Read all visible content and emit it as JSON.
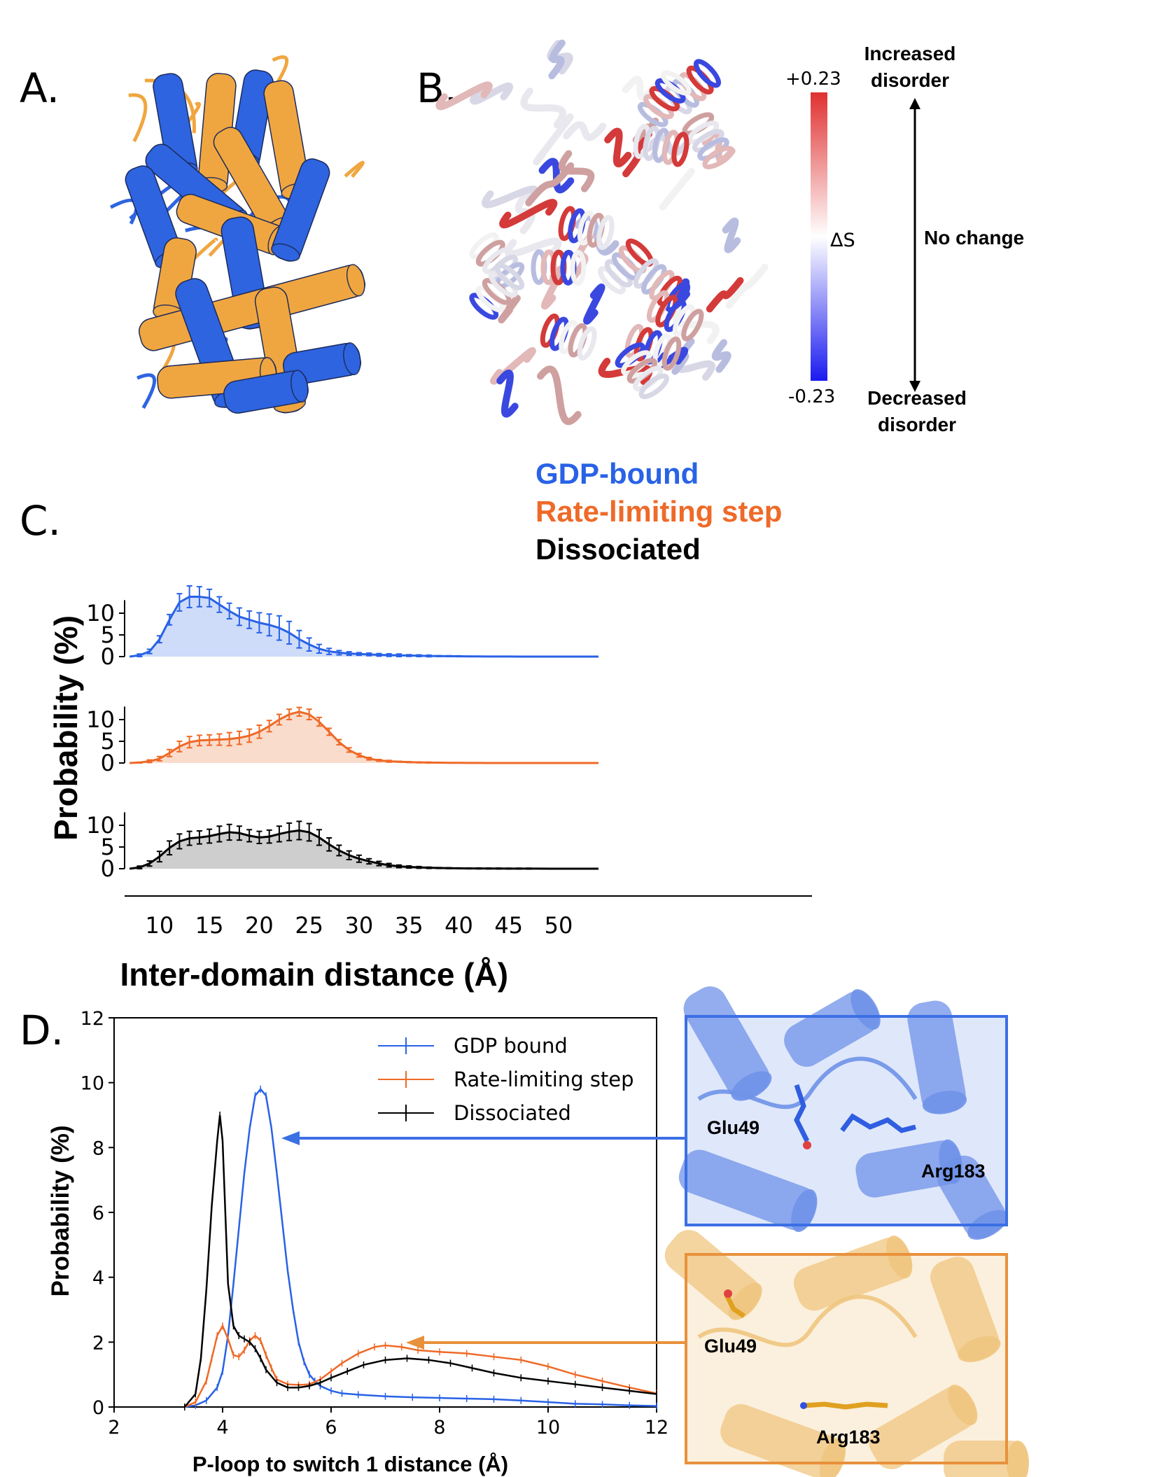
{
  "panels": {
    "a": "A.",
    "b": "B.",
    "c": "C.",
    "d": "D."
  },
  "panel_b": {
    "colorbar_max": "+0.23",
    "colorbar_min": "-0.23",
    "colorbar_label": "ΔS",
    "top_label": [
      "Increased",
      "disorder"
    ],
    "middle_label": "No change",
    "bottom_label": [
      "Decreased",
      "disorder"
    ],
    "colors": {
      "high": "#e03030",
      "mid": "#ffffff",
      "low": "#1a1af0"
    }
  },
  "colors": {
    "gdp": "#2962e6",
    "rate": "#ee6a28",
    "dissociated": "#000000",
    "fill_gdp": "#c9d8f8",
    "fill_rate": "#f9d8c6",
    "fill_diss": "#c9c9c9",
    "protein_blue": "#2e64e0",
    "protein_orange": "#f0a640",
    "inset_blue_frame": "#3b6fe4",
    "inset_orange_frame": "#e8913c"
  },
  "chart_data": [
    {
      "type": "area",
      "panel": "C",
      "legend": [
        "GDP-bound",
        "Rate-limiting step",
        "Dissociated"
      ],
      "xlabel": "Inter-domain distance (Å)",
      "ylabel": "Probability (%)",
      "xlim": [
        6.5,
        54
      ],
      "xticks": [
        10,
        15,
        20,
        25,
        30,
        35,
        40,
        45,
        50
      ],
      "yticks": [
        0,
        5,
        10
      ],
      "x": [
        7,
        8,
        9,
        10,
        11,
        12,
        13,
        14,
        15,
        16,
        17,
        18,
        19,
        20,
        21,
        22,
        23,
        24,
        25,
        26,
        27,
        28,
        29,
        30,
        31,
        32,
        33,
        34,
        35,
        36,
        37,
        38,
        39,
        40,
        41,
        42,
        43,
        44,
        45,
        46,
        47,
        48,
        49,
        50,
        51,
        52,
        53,
        54
      ],
      "series": [
        {
          "name": "GDP-bound",
          "values": [
            0,
            0.3,
            1.2,
            4,
            8.5,
            12.5,
            13.8,
            13.8,
            13.5,
            12,
            10.5,
            9.2,
            8.5,
            7.8,
            7.3,
            6.6,
            5.5,
            4,
            2.8,
            1.8,
            1.2,
            0.9,
            0.7,
            0.6,
            0.5,
            0.4,
            0.35,
            0.3,
            0.25,
            0.2,
            0.15,
            0.12,
            0.1,
            0.08,
            0.05,
            0.04,
            0.03,
            0.02,
            0.02,
            0.01,
            0.01,
            0,
            0,
            0,
            0,
            0,
            0,
            0
          ],
          "errors": [
            0,
            0.3,
            0.5,
            0.8,
            1.2,
            2,
            2.5,
            2.3,
            2,
            1.8,
            1.8,
            2,
            2,
            2.3,
            2.5,
            2.8,
            2.6,
            2,
            1.5,
            1,
            0.7,
            0.5,
            0.4,
            0.3,
            0.3,
            0.3,
            0.3,
            0.3,
            0.2,
            0.2,
            0.2,
            0.1,
            0.1,
            0.1,
            0.05,
            0.05,
            0,
            0,
            0,
            0,
            0,
            0,
            0,
            0,
            0,
            0,
            0,
            0
          ]
        },
        {
          "name": "Rate-limiting step",
          "values": [
            0,
            0.1,
            0.4,
            1,
            2.3,
            3.8,
            4.8,
            5.2,
            5.3,
            5.4,
            5.5,
            5.8,
            6.3,
            7.2,
            8.5,
            10,
            11.2,
            11.8,
            11.2,
            9.5,
            7.2,
            4.8,
            3,
            1.8,
            1,
            0.6,
            0.4,
            0.3,
            0.2,
            0.15,
            0.1,
            0.08,
            0.05,
            0.04,
            0.03,
            0.02,
            0.01,
            0,
            0,
            0,
            0,
            0,
            0,
            0,
            0,
            0,
            0,
            0
          ],
          "errors": [
            0,
            0.1,
            0.3,
            0.5,
            0.8,
            1.2,
            1.3,
            1.2,
            1.2,
            1.3,
            1.5,
            1.5,
            1.5,
            1.5,
            1.3,
            1.2,
            1.2,
            1,
            1.2,
            1,
            0.8,
            0.6,
            0.5,
            0.4,
            0.3,
            0.2,
            0.2,
            0.1,
            0.1,
            0.1,
            0.1,
            0.05,
            0,
            0,
            0,
            0,
            0,
            0,
            0,
            0,
            0,
            0,
            0,
            0,
            0,
            0,
            0,
            0
          ]
        },
        {
          "name": "Dissociated",
          "values": [
            0,
            0.3,
            1.2,
            2.8,
            4.8,
            6.3,
            7,
            7.2,
            7.5,
            8,
            8.4,
            8.2,
            7.6,
            7.2,
            7.4,
            8,
            8.5,
            8.8,
            8.4,
            7.2,
            5.6,
            4.2,
            3.1,
            2.3,
            1.7,
            1.2,
            0.8,
            0.55,
            0.4,
            0.3,
            0.22,
            0.16,
            0.12,
            0.09,
            0.07,
            0.06,
            0.05,
            0.04,
            0.03,
            0.03,
            0.02,
            0.02,
            0.01,
            0.01,
            0,
            0,
            0,
            0
          ],
          "errors": [
            0,
            0.3,
            0.6,
            1.2,
            1.6,
            1.7,
            1.6,
            1.5,
            1.6,
            1.8,
            1.8,
            1.6,
            1.4,
            1.4,
            1.5,
            1.8,
            2,
            2.1,
            2,
            1.8,
            1.5,
            1.2,
            1,
            0.8,
            0.6,
            0.5,
            0.4,
            0.3,
            0.25,
            0.2,
            0.15,
            0.1,
            0.1,
            0.1,
            0.1,
            0.1,
            0.1,
            0.1,
            0.1,
            0.1,
            0.1,
            0.05,
            0.05,
            0.05,
            0,
            0,
            0,
            0
          ]
        }
      ]
    },
    {
      "type": "line",
      "panel": "D",
      "xlabel": "P-loop to switch 1 distance (Å)",
      "ylabel": "Probability (%)",
      "xlim": [
        2,
        12
      ],
      "ylim": [
        0,
        12
      ],
      "xticks": [
        2,
        4,
        6,
        8,
        10,
        12
      ],
      "yticks": [
        0,
        2,
        4,
        6,
        8,
        10,
        12
      ],
      "legend": [
        "GDP bound",
        "Rate-limiting step",
        "Dissociated"
      ],
      "series": [
        {
          "name": "GDP bound",
          "x": [
            3.3,
            3.5,
            3.7,
            3.9,
            4.0,
            4.1,
            4.2,
            4.3,
            4.4,
            4.5,
            4.6,
            4.7,
            4.8,
            4.9,
            5.0,
            5.1,
            5.2,
            5.3,
            5.4,
            5.5,
            5.6,
            5.7,
            5.8,
            6.0,
            6.2,
            6.5,
            7,
            7.5,
            8,
            8.5,
            9,
            9.5,
            10,
            10.5,
            11,
            11.5,
            12
          ],
          "values": [
            0,
            0.05,
            0.2,
            0.6,
            1.1,
            2.2,
            3.8,
            5.5,
            7.2,
            8.6,
            9.6,
            9.8,
            9.6,
            8.6,
            7.2,
            5.7,
            4.2,
            3.0,
            2.0,
            1.4,
            1.0,
            0.8,
            0.65,
            0.5,
            0.42,
            0.38,
            0.33,
            0.3,
            0.28,
            0.26,
            0.24,
            0.2,
            0.15,
            0.1,
            0.08,
            0.05,
            0.03
          ]
        },
        {
          "name": "Rate-limiting step",
          "x": [
            3.3,
            3.5,
            3.7,
            3.8,
            3.9,
            4.0,
            4.1,
            4.2,
            4.3,
            4.4,
            4.5,
            4.6,
            4.7,
            4.8,
            4.9,
            5.0,
            5.2,
            5.4,
            5.6,
            5.8,
            6.0,
            6.2,
            6.5,
            6.8,
            7.0,
            7.3,
            7.6,
            8.0,
            8.5,
            9.0,
            9.5,
            10,
            10.5,
            11,
            11.5,
            12
          ],
          "values": [
            0,
            0.15,
            0.8,
            1.5,
            2.2,
            2.5,
            2.1,
            1.6,
            1.55,
            1.75,
            2.05,
            2.2,
            2.05,
            1.6,
            1.2,
            0.85,
            0.7,
            0.68,
            0.7,
            0.85,
            1.1,
            1.35,
            1.65,
            1.85,
            1.9,
            1.85,
            1.75,
            1.7,
            1.65,
            1.55,
            1.45,
            1.25,
            1.0,
            0.8,
            0.6,
            0.42
          ]
        },
        {
          "name": "Dissociated",
          "x": [
            3.3,
            3.5,
            3.6,
            3.7,
            3.8,
            3.9,
            3.95,
            4.0,
            4.05,
            4.1,
            4.2,
            4.3,
            4.4,
            4.5,
            4.6,
            4.7,
            4.8,
            5.0,
            5.2,
            5.4,
            5.6,
            5.8,
            6.0,
            6.3,
            6.6,
            7.0,
            7.4,
            7.8,
            8.2,
            8.6,
            9.0,
            9.5,
            10,
            10.5,
            11,
            11.5,
            12
          ],
          "values": [
            0,
            0.4,
            1.5,
            3.6,
            6.2,
            8.2,
            9.0,
            8.2,
            6.0,
            3.8,
            2.5,
            2.2,
            2.1,
            2.0,
            1.8,
            1.5,
            1.15,
            0.75,
            0.6,
            0.6,
            0.65,
            0.75,
            0.9,
            1.1,
            1.3,
            1.45,
            1.5,
            1.45,
            1.35,
            1.2,
            1.05,
            0.9,
            0.8,
            0.7,
            0.6,
            0.5,
            0.4
          ]
        }
      ]
    }
  ],
  "insets": {
    "blue": {
      "residue1": "Glu49",
      "residue2": "Arg183"
    },
    "orange": {
      "residue1": "Glu49",
      "residue2": "Arg183"
    }
  }
}
